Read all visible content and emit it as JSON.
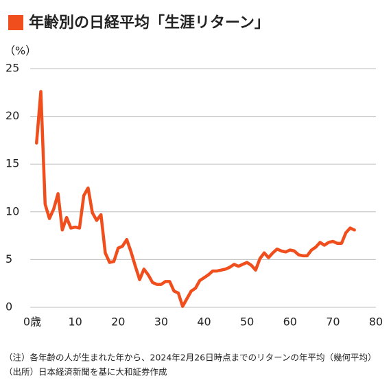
{
  "chart_data": {
    "type": "line",
    "title": "年齢別の日経平均「生涯リターン」",
    "y_label": "（%）",
    "notes": [
      "（注）各年齢の人が生まれた年から、2024年2月26日時点までのリターンの年平均（幾何平均）",
      "（出所）日本経済新聞を基に大和証券作成"
    ],
    "color": "#f04e1c",
    "x": [
      1,
      2,
      3,
      4,
      5,
      6,
      7,
      8,
      9,
      10,
      11,
      12,
      13,
      14,
      15,
      16,
      17,
      18,
      19,
      20,
      21,
      22,
      23,
      24,
      25,
      26,
      27,
      28,
      29,
      30,
      31,
      32,
      33,
      34,
      35,
      36,
      37,
      38,
      39,
      40,
      41,
      42,
      43,
      44,
      45,
      46,
      47,
      48,
      49,
      50,
      51,
      52,
      53,
      54,
      55,
      56,
      57,
      58,
      59,
      60,
      61,
      62,
      63,
      64,
      65,
      66,
      67,
      68,
      69,
      70,
      71,
      72,
      73,
      74,
      75
    ],
    "values": [
      17.2,
      22.6,
      10.8,
      9.3,
      10.3,
      11.9,
      8.1,
      9.4,
      8.3,
      8.4,
      8.3,
      11.7,
      12.5,
      9.9,
      9.1,
      9.7,
      5.7,
      4.7,
      4.8,
      6.2,
      6.4,
      7.1,
      5.8,
      4.3,
      2.9,
      4.0,
      3.4,
      2.6,
      2.4,
      2.4,
      2.7,
      2.7,
      1.7,
      1.5,
      0.1,
      0.9,
      1.7,
      2.0,
      2.8,
      3.1,
      3.4,
      3.8,
      3.8,
      3.9,
      4.0,
      4.2,
      4.5,
      4.3,
      4.5,
      4.7,
      4.4,
      3.9,
      5.1,
      5.7,
      5.2,
      5.7,
      6.1,
      5.9,
      5.8,
      6.0,
      5.9,
      5.5,
      5.4,
      5.4,
      6.0,
      6.3,
      6.8,
      6.5,
      6.8,
      6.9,
      6.7,
      6.7,
      7.8,
      8.3,
      8.1
    ],
    "xlim": [
      0,
      80
    ],
    "xticks": [
      {
        "value": 0,
        "label": "0歳"
      },
      10,
      20,
      30,
      40,
      50,
      60,
      70,
      80
    ],
    "ylim": [
      0,
      25
    ],
    "yticks": [
      0,
      5,
      10,
      15,
      20,
      25
    ],
    "grid": true
  }
}
